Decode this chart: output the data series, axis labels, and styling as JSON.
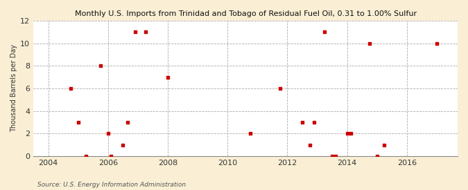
{
  "title": "Monthly U.S. Imports from Trinidad and Tobago of Residual Fuel Oil, 0.31 to 1.00% Sulfur",
  "ylabel": "Thousand Barrels per Day",
  "source": "Source: U.S. Energy Information Administration",
  "background_color": "#faefd4",
  "plot_bg_color": "#ffffff",
  "scatter_color": "#cc0000",
  "xlim": [
    2003.5,
    2017.7
  ],
  "ylim": [
    0,
    12
  ],
  "yticks": [
    0,
    2,
    4,
    6,
    8,
    10,
    12
  ],
  "xticks": [
    2004,
    2006,
    2008,
    2010,
    2012,
    2014,
    2016
  ],
  "points": [
    [
      2004.75,
      6
    ],
    [
      2005.0,
      3
    ],
    [
      2005.25,
      0
    ],
    [
      2005.75,
      8
    ],
    [
      2006.0,
      2
    ],
    [
      2006.1,
      0
    ],
    [
      2006.5,
      1
    ],
    [
      2006.65,
      3
    ],
    [
      2006.9,
      11
    ],
    [
      2007.25,
      11
    ],
    [
      2008.0,
      7
    ],
    [
      2010.75,
      2
    ],
    [
      2011.75,
      6
    ],
    [
      2012.5,
      3
    ],
    [
      2012.75,
      1
    ],
    [
      2012.9,
      3
    ],
    [
      2013.25,
      11
    ],
    [
      2013.5,
      0
    ],
    [
      2013.62,
      0
    ],
    [
      2014.0,
      2
    ],
    [
      2014.12,
      2
    ],
    [
      2014.75,
      10
    ],
    [
      2015.0,
      0
    ],
    [
      2015.25,
      1
    ],
    [
      2017.0,
      10
    ]
  ]
}
